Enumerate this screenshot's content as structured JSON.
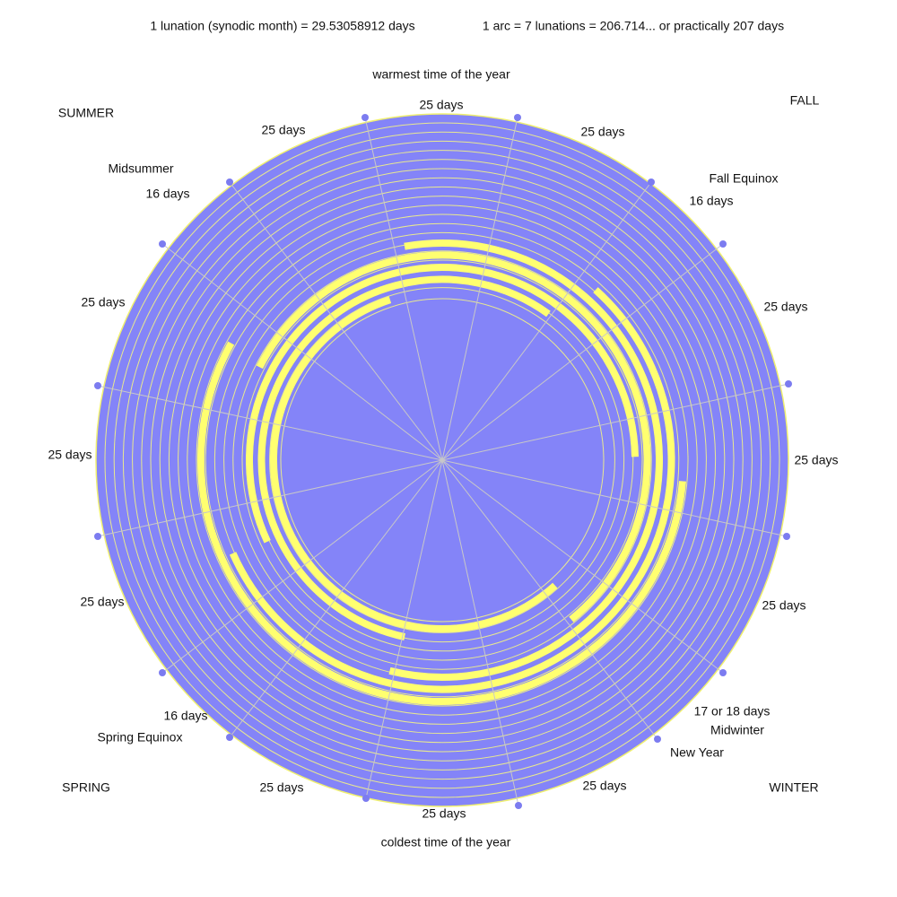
{
  "header": {
    "lunation": "1 lunation (synodic month) = 29.53058912 days",
    "arc": "1 arc = 7 lunations = 206.714... or practically 207 days"
  },
  "labels": {
    "warmest": "warmest time of the year",
    "coldest": "coldest time of the year",
    "summer": "SUMMER",
    "fall": "FALL",
    "spring": "SPRING",
    "winter": "WINTER",
    "midsummer": "Midsummer",
    "fall_equinox": "Fall Equinox",
    "spring_equinox": "Spring Equinox",
    "midwinter": "Midwinter",
    "new_year": "New Year"
  },
  "segments": [
    "25 days",
    "25 days",
    "16 days",
    "25 days",
    "25 days",
    "25 days",
    "17 or 18 days",
    "25 days",
    "25 days",
    "25 days",
    "16 days",
    "25 days",
    "25 days",
    "25 days",
    "16 days",
    "25 days"
  ]
}
